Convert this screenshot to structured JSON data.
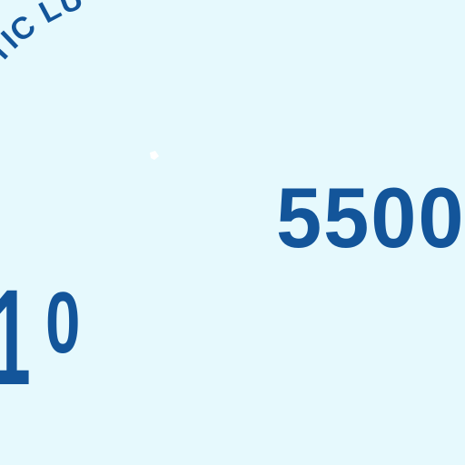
{
  "colors": {
    "background": "#e6f9fd",
    "ink": "#13559a"
  },
  "card": {
    "arc_text": "NTIC LU",
    "amount": "5500",
    "number_digit_1": "1",
    "number_digit_0": "0"
  }
}
